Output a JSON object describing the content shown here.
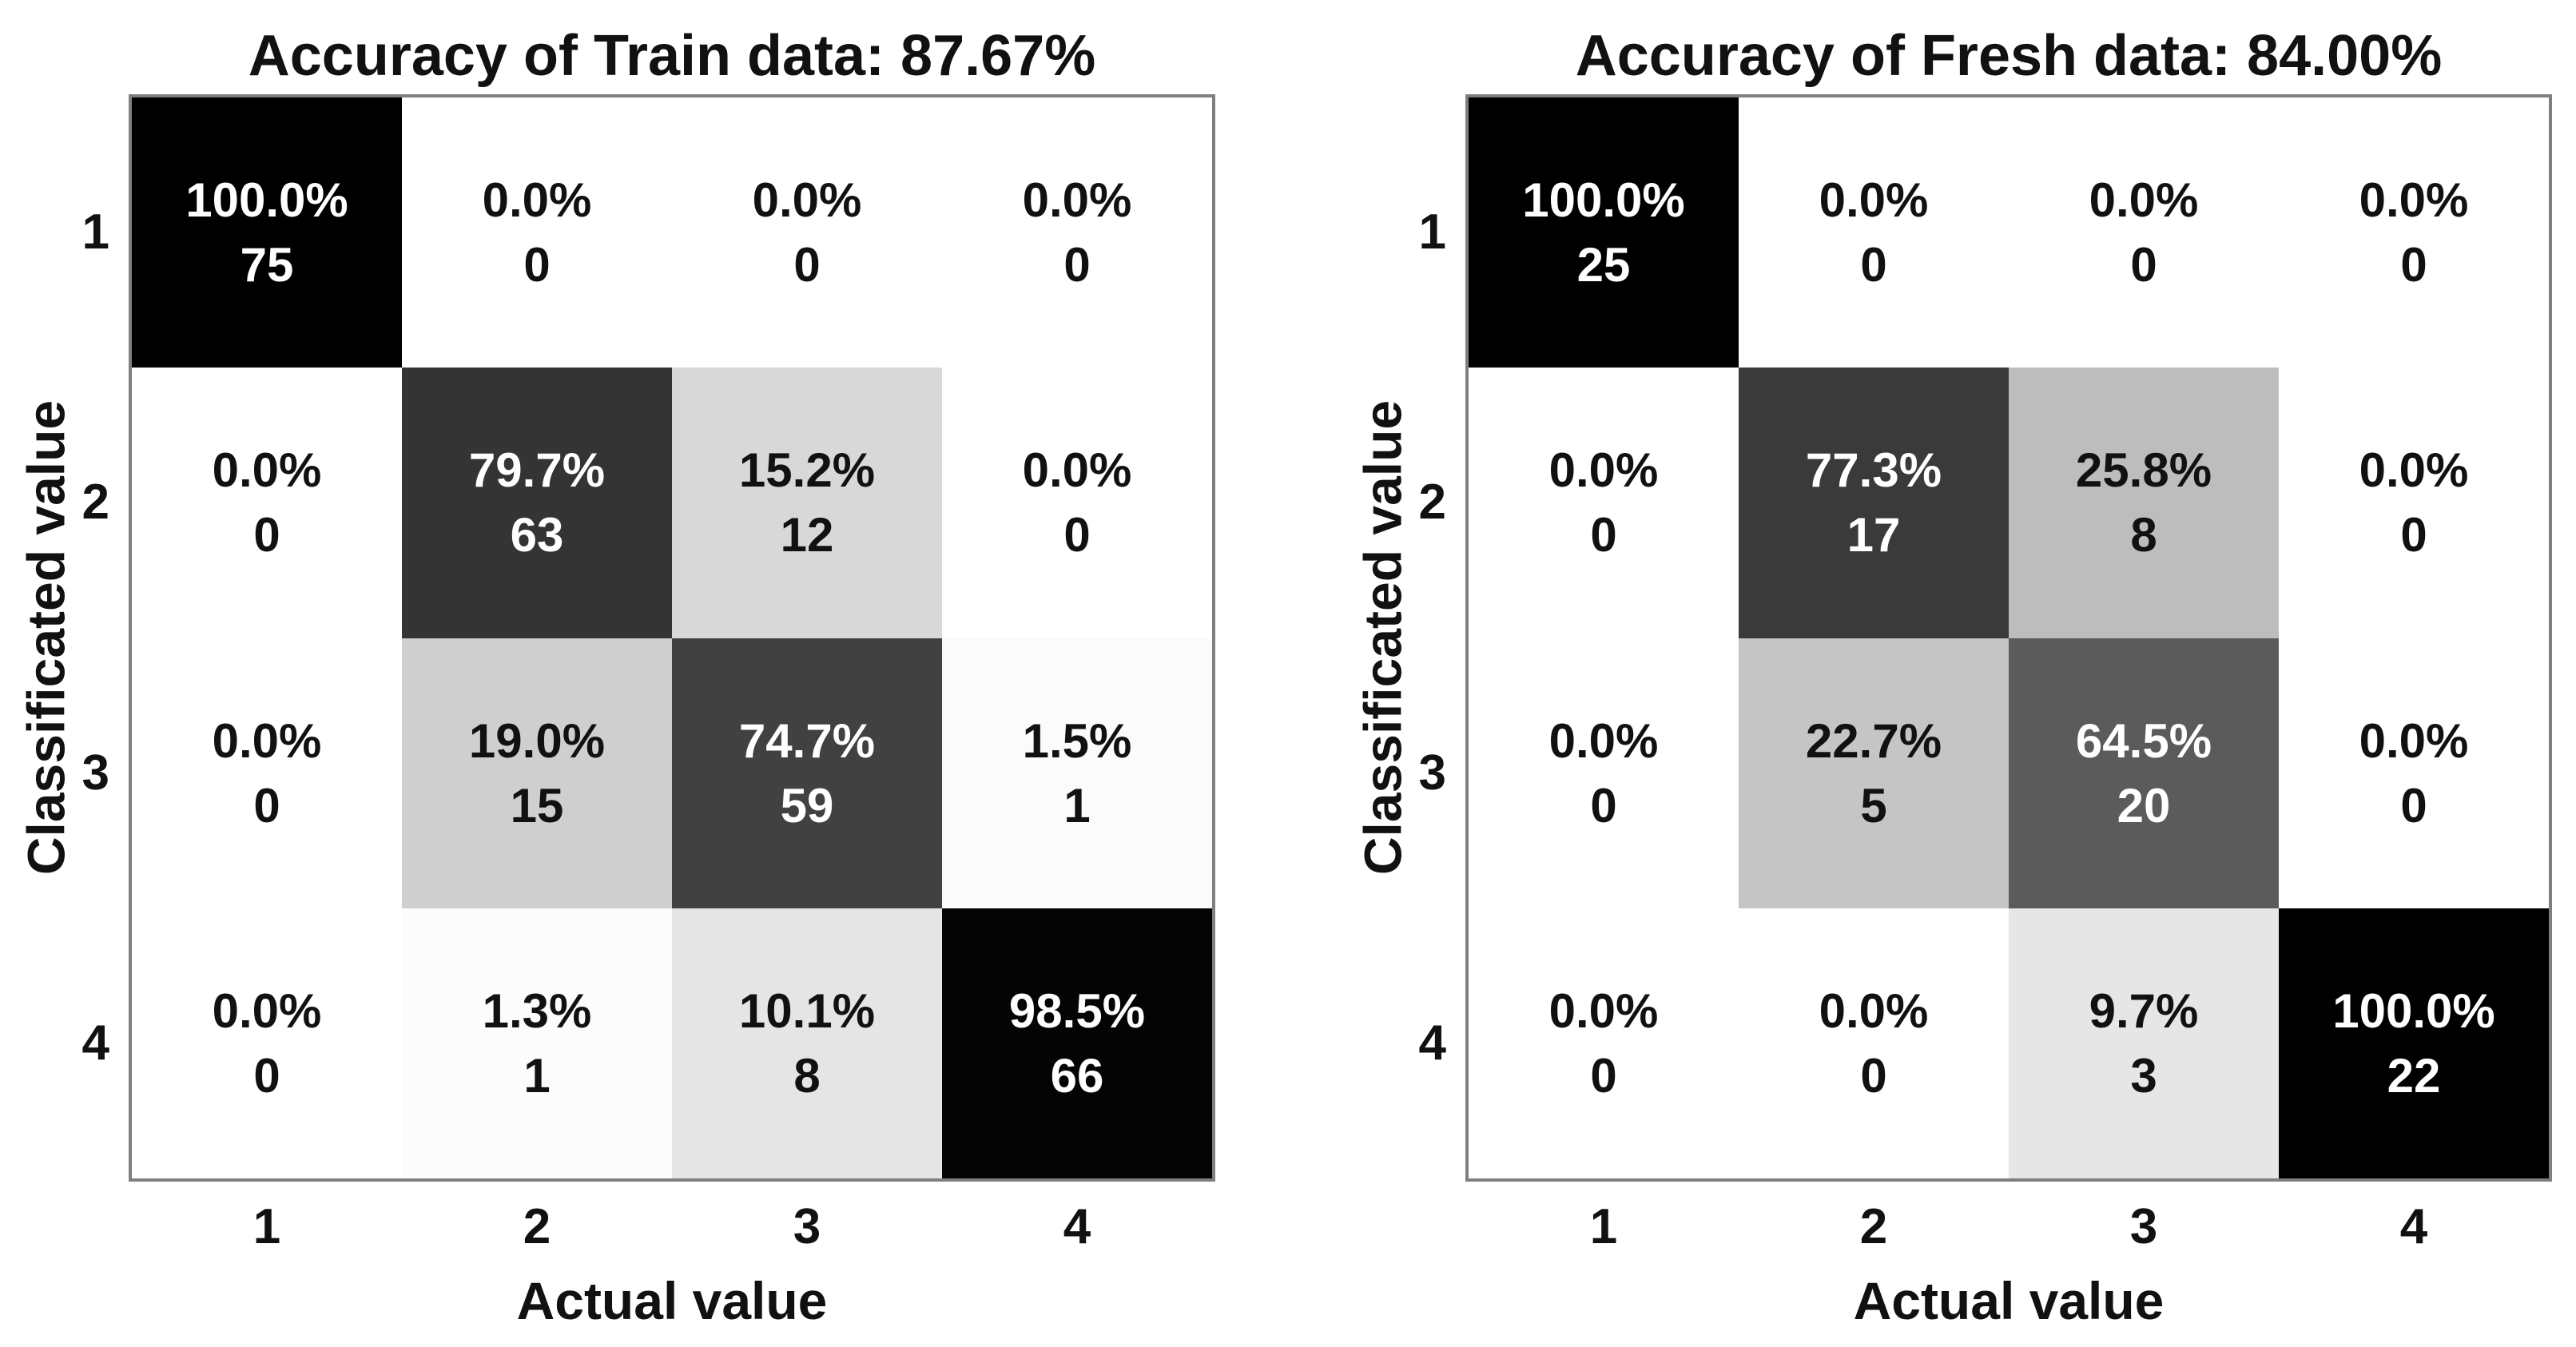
{
  "figure": {
    "background_color": "#ffffff",
    "text_color": "#111111",
    "plot_border_color": "#7f7f7f",
    "cell_shading_rule": "grayscale heatmap: cell gray value = 255 x (1 - percent/100); white label text on cells darker than 50%"
  },
  "chart_data": [
    {
      "type": "heatmap",
      "name": "confusion-matrix-train",
      "title": "Accuracy of Train data: 87.67%",
      "xlabel": "Actual value",
      "ylabel": "Classificated value",
      "x_ticks": [
        "1",
        "2",
        "3",
        "4"
      ],
      "y_ticks": [
        "1",
        "2",
        "3",
        "4"
      ],
      "legend": "none",
      "grid": "off",
      "cells": [
        [
          {
            "percent": "100.0%",
            "count": "75"
          },
          {
            "percent": "0.0%",
            "count": "0"
          },
          {
            "percent": "0.0%",
            "count": "0"
          },
          {
            "percent": "0.0%",
            "count": "0"
          }
        ],
        [
          {
            "percent": "0.0%",
            "count": "0"
          },
          {
            "percent": "79.7%",
            "count": "63"
          },
          {
            "percent": "15.2%",
            "count": "12"
          },
          {
            "percent": "0.0%",
            "count": "0"
          }
        ],
        [
          {
            "percent": "0.0%",
            "count": "0"
          },
          {
            "percent": "19.0%",
            "count": "15"
          },
          {
            "percent": "74.7%",
            "count": "59"
          },
          {
            "percent": "1.5%",
            "count": "1"
          }
        ],
        [
          {
            "percent": "0.0%",
            "count": "0"
          },
          {
            "percent": "1.3%",
            "count": "1"
          },
          {
            "percent": "10.1%",
            "count": "8"
          },
          {
            "percent": "98.5%",
            "count": "66"
          }
        ]
      ]
    },
    {
      "type": "heatmap",
      "name": "confusion-matrix-fresh",
      "title": "Accuracy of Fresh data: 84.00%",
      "xlabel": "Actual value",
      "ylabel": "Classificated value",
      "x_ticks": [
        "1",
        "2",
        "3",
        "4"
      ],
      "y_ticks": [
        "1",
        "2",
        "3",
        "4"
      ],
      "legend": "none",
      "grid": "off",
      "cells": [
        [
          {
            "percent": "100.0%",
            "count": "25"
          },
          {
            "percent": "0.0%",
            "count": "0"
          },
          {
            "percent": "0.0%",
            "count": "0"
          },
          {
            "percent": "0.0%",
            "count": "0"
          }
        ],
        [
          {
            "percent": "0.0%",
            "count": "0"
          },
          {
            "percent": "77.3%",
            "count": "17"
          },
          {
            "percent": "25.8%",
            "count": "8"
          },
          {
            "percent": "0.0%",
            "count": "0"
          }
        ],
        [
          {
            "percent": "0.0%",
            "count": "0"
          },
          {
            "percent": "22.7%",
            "count": "5"
          },
          {
            "percent": "64.5%",
            "count": "20"
          },
          {
            "percent": "0.0%",
            "count": "0"
          }
        ],
        [
          {
            "percent": "0.0%",
            "count": "0"
          },
          {
            "percent": "0.0%",
            "count": "0"
          },
          {
            "percent": "9.7%",
            "count": "3"
          },
          {
            "percent": "100.0%",
            "count": "22"
          }
        ]
      ]
    }
  ]
}
